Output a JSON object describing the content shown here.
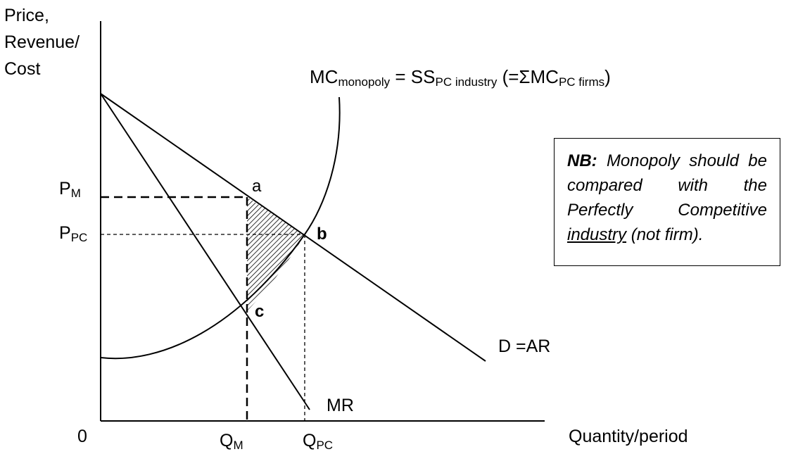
{
  "diagram": {
    "y_axis_label": [
      "Price,",
      "Revenue/",
      "Cost"
    ],
    "x_axis_label": "Quantity/period",
    "origin_label": "0",
    "mc_curve_label": {
      "main1": "MC",
      "sub1": "monopoly",
      "main2": " = SS",
      "sub2": "PC industry",
      "main3": " (=ΣMC",
      "sub3": "PC firms",
      "main4": ")"
    },
    "demand_label": "D =AR",
    "mr_label": "MR",
    "point_a": "a",
    "point_b": "b",
    "point_c": "c",
    "pm_label": {
      "main": "P",
      "sub": "M"
    },
    "ppc_label": {
      "main": "P",
      "sub": "PC"
    },
    "qm_label": {
      "main": "Q",
      "sub": "M"
    },
    "qpc_label": {
      "main": "Q",
      "sub": "PC"
    }
  },
  "note": {
    "nb": "NB:",
    "line_part1": " Monopoly should be compared with the Perfectly Competitive ",
    "underlined": "industry",
    "line_part2": " (not firm)."
  }
}
